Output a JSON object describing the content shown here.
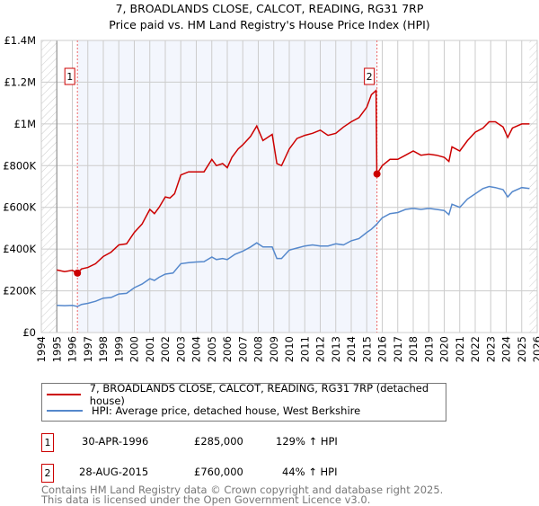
{
  "chart_data": {
    "type": "line",
    "title": "7, BROADLANDS CLOSE, CALCOT, READING, RG31 7RP",
    "subtitle": "Price paid vs. HM Land Registry's House Price Index (HPI)",
    "xlim": [
      1994,
      2026
    ],
    "ylim": [
      0,
      1400000
    ],
    "x_ticks": [
      "1994",
      "1995",
      "1996",
      "1997",
      "1998",
      "1999",
      "2000",
      "2001",
      "2002",
      "2003",
      "2004",
      "2005",
      "2006",
      "2007",
      "2008",
      "2009",
      "2010",
      "2011",
      "2012",
      "2013",
      "2014",
      "2015",
      "2016",
      "2017",
      "2018",
      "2019",
      "2020",
      "2021",
      "2022",
      "2023",
      "2024",
      "2025",
      "2026"
    ],
    "y_ticks": [
      {
        "v": 0,
        "label": "£0"
      },
      {
        "v": 200000,
        "label": "£200K"
      },
      {
        "v": 400000,
        "label": "£400K"
      },
      {
        "v": 600000,
        "label": "£600K"
      },
      {
        "v": 800000,
        "label": "£800K"
      },
      {
        "v": 1000000,
        "label": "£1M"
      },
      {
        "v": 1200000,
        "label": "£1.2M"
      },
      {
        "v": 1400000,
        "label": "£1.4M"
      }
    ],
    "grid": true,
    "shaded_period": [
      1996.33,
      2015.66
    ],
    "series": [
      {
        "name": "7, BROADLANDS CLOSE, CALCOT, READING, RG31 7RP (detached house)",
        "color": "#cc0000",
        "x": [
          1995,
          1995.5,
          1996,
          1996.33,
          1996.6,
          1997,
          1997.5,
          1998,
          1998.5,
          1999,
          1999.5,
          2000,
          2000.5,
          2001,
          2001.3,
          2001.6,
          2002,
          2002.3,
          2002.6,
          2003,
          2003.5,
          2004,
          2004.5,
          2005,
          2005.3,
          2005.7,
          2006,
          2006.3,
          2006.7,
          2007,
          2007.5,
          2007.9,
          2008.3,
          2008.9,
          2009.2,
          2009.5,
          2010,
          2010.5,
          2011,
          2011.5,
          2012,
          2012.5,
          2013,
          2013.5,
          2014,
          2014.5,
          2015,
          2015.3,
          2015.6,
          2015.65,
          2016,
          2016.5,
          2017,
          2017.5,
          2018,
          2018.5,
          2019,
          2019.5,
          2020,
          2020.3,
          2020.5,
          2021,
          2021.5,
          2022,
          2022.5,
          2022.9,
          2023.3,
          2023.8,
          2024.1,
          2024.4,
          2025,
          2025.5
        ],
        "y": [
          300000,
          292000,
          298000,
          285000,
          305000,
          312000,
          330000,
          365000,
          385000,
          420000,
          425000,
          480000,
          520000,
          590000,
          570000,
          600000,
          650000,
          645000,
          665000,
          755000,
          770000,
          770000,
          770000,
          830000,
          800000,
          810000,
          790000,
          840000,
          880000,
          900000,
          940000,
          990000,
          920000,
          950000,
          810000,
          800000,
          880000,
          930000,
          945000,
          955000,
          970000,
          945000,
          955000,
          985000,
          1010000,
          1030000,
          1080000,
          1140000,
          1160000,
          760000,
          800000,
          830000,
          830000,
          850000,
          870000,
          850000,
          855000,
          850000,
          840000,
          820000,
          890000,
          870000,
          920000,
          960000,
          980000,
          1010000,
          1010000,
          985000,
          935000,
          980000,
          1000000,
          1000000
        ]
      },
      {
        "name": "HPI: Average price, detached house, West Berkshire",
        "color": "#5588cc",
        "x": [
          1995,
          1995.5,
          1996,
          1996.33,
          1996.6,
          1997,
          1997.5,
          1998,
          1998.5,
          1999,
          1999.5,
          2000,
          2000.5,
          2001,
          2001.3,
          2001.6,
          2002,
          2002.5,
          2003,
          2003.5,
          2004,
          2004.5,
          2005,
          2005.3,
          2005.7,
          2006,
          2006.5,
          2007,
          2007.5,
          2007.9,
          2008.3,
          2008.9,
          2009.2,
          2009.5,
          2010,
          2010.5,
          2011,
          2011.5,
          2012,
          2012.5,
          2013,
          2013.5,
          2014,
          2014.5,
          2015,
          2015.3,
          2015.65,
          2016,
          2016.5,
          2017,
          2017.5,
          2018,
          2018.5,
          2019,
          2019.5,
          2020,
          2020.3,
          2020.5,
          2021,
          2021.5,
          2022,
          2022.5,
          2022.9,
          2023.3,
          2023.8,
          2024.1,
          2024.4,
          2025,
          2025.5
        ],
        "y": [
          130000,
          129000,
          130000,
          125000,
          135000,
          140000,
          150000,
          165000,
          168000,
          185000,
          188000,
          215000,
          232000,
          258000,
          250000,
          265000,
          280000,
          285000,
          330000,
          335000,
          338000,
          340000,
          362000,
          350000,
          355000,
          350000,
          375000,
          390000,
          410000,
          430000,
          410000,
          410000,
          355000,
          355000,
          395000,
          405000,
          415000,
          420000,
          415000,
          415000,
          425000,
          420000,
          440000,
          450000,
          480000,
          495000,
          520000,
          550000,
          570000,
          575000,
          590000,
          595000,
          590000,
          595000,
          590000,
          585000,
          565000,
          615000,
          600000,
          640000,
          665000,
          690000,
          700000,
          695000,
          685000,
          650000,
          675000,
          695000,
          690000
        ]
      }
    ],
    "annotations": [
      {
        "label": "1",
        "x": 1996.33,
        "y": 285000
      },
      {
        "label": "2",
        "x": 2015.66,
        "y": 760000
      }
    ]
  },
  "legend": {
    "items": [
      "7, BROADLANDS CLOSE, CALCOT, READING, RG31 7RP (detached house)",
      "HPI: Average price, detached house, West Berkshire"
    ]
  },
  "sales": [
    {
      "num": "1",
      "date": "30-APR-1996",
      "price": "£285,000",
      "hpi": "129% ↑ HPI"
    },
    {
      "num": "2",
      "date": "28-AUG-2015",
      "price": "£760,000",
      "hpi": "44% ↑ HPI"
    }
  ],
  "footer": {
    "line1": "Contains HM Land Registry data © Crown copyright and database right 2025.",
    "line2": "This data is licensed under the Open Government Licence v3.0."
  }
}
